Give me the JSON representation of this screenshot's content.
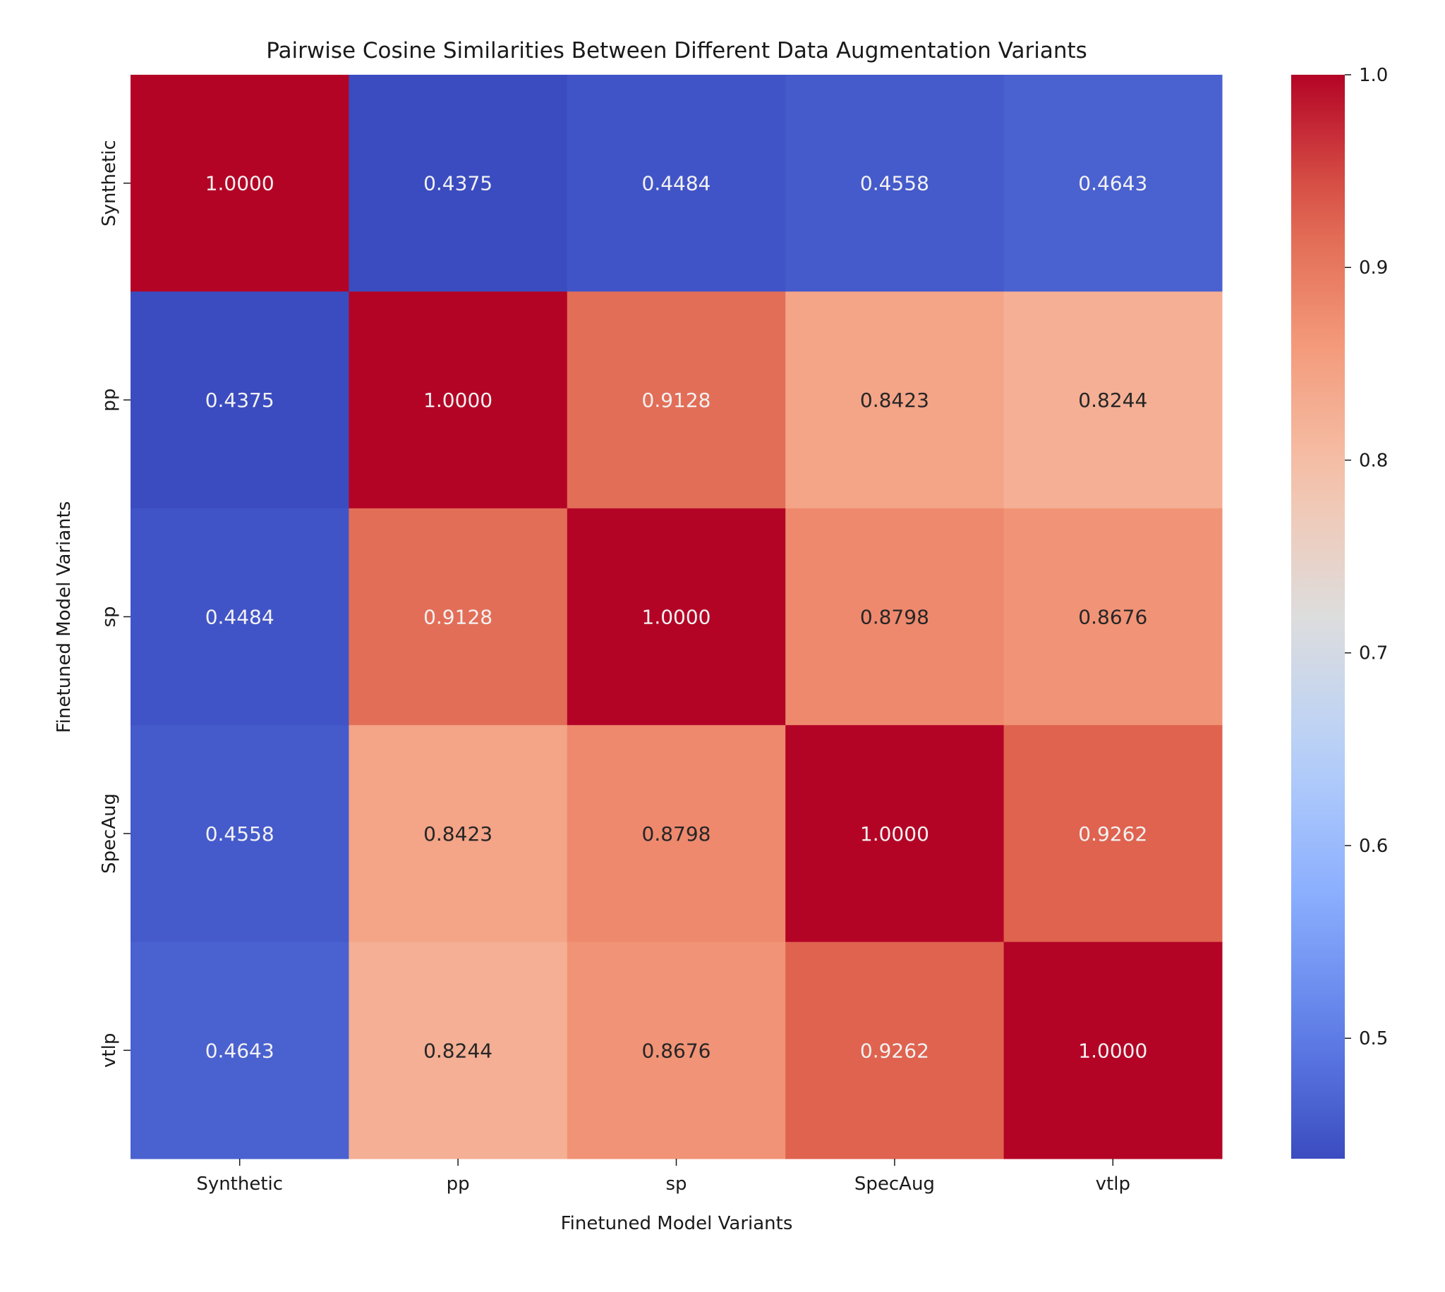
{
  "chart_data": {
    "type": "heatmap",
    "title": "Pairwise Cosine Similarities Between Different Data Augmentation Variants",
    "xlabel": "Finetuned Model Variants",
    "ylabel": "Finetuned Model Variants",
    "x_categories": [
      "Synthetic",
      "pp",
      "sp",
      "SpecAug",
      "vtlp"
    ],
    "y_categories": [
      "Synthetic",
      "pp",
      "sp",
      "SpecAug",
      "vtlp"
    ],
    "values": [
      [
        1.0,
        0.4375,
        0.4484,
        0.4558,
        0.4643
      ],
      [
        0.4375,
        1.0,
        0.9128,
        0.8423,
        0.8244
      ],
      [
        0.4484,
        0.9128,
        1.0,
        0.8798,
        0.8676
      ],
      [
        0.4558,
        0.8423,
        0.8798,
        1.0,
        0.9262
      ],
      [
        0.4643,
        0.8244,
        0.8676,
        0.9262,
        1.0
      ]
    ],
    "annotation_format": "0.0000",
    "colormap": "coolwarm",
    "colorbar": {
      "vmin": 0.4375,
      "vmax": 1.0,
      "ticks": [
        0.5,
        0.6,
        0.7,
        0.8,
        0.9,
        1.0
      ],
      "tick_labels": [
        "0.5",
        "0.6",
        "0.7",
        "0.8",
        "0.9",
        "1.0"
      ],
      "placement": "right"
    },
    "grid": false
  }
}
